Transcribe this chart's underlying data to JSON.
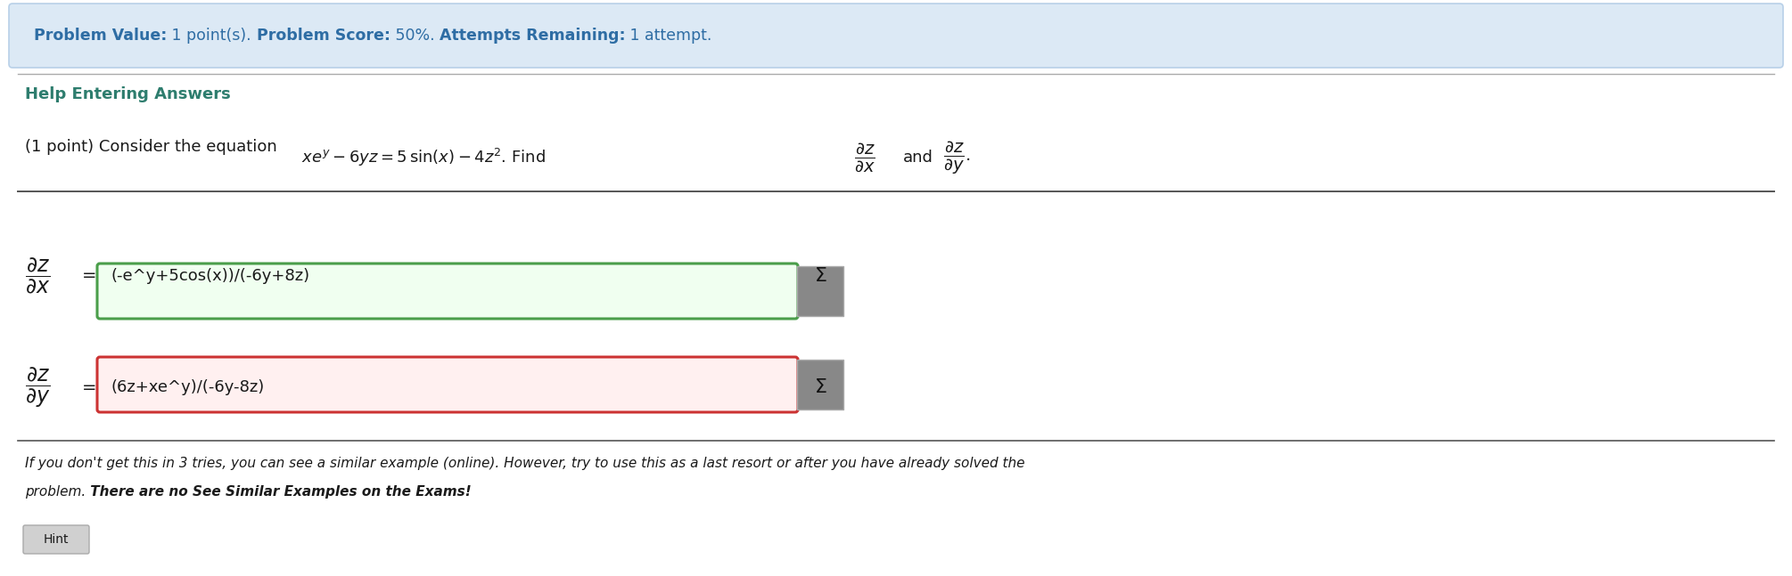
{
  "bg_color": "#ffffff",
  "header_bg": "#dce9f5",
  "header_border_color": "#b8d0e8",
  "header_font_color": "#2e6da4",
  "header_bold": [
    "Problem Value:",
    "Problem Score:",
    "Attempts Remaining:"
  ],
  "header_normal": [
    " 1 point(s). ",
    " 50%. ",
    " 1 attempt."
  ],
  "title_color": "#2e7d6e",
  "body_color": "#1a1a1a",
  "section_title": "Help Entering Answers",
  "problem_prefix": "(1 point) Consider the equation ",
  "problem_equation": "$xe^{y} - 6yz = 5\\sin(x) - 4z^2$. Find",
  "find_dzdx": "$\\dfrac{\\partial z}{\\partial x}$",
  "and_text": "and",
  "find_dzdy": "$\\dfrac{\\partial z}{\\partial y}$",
  "period": ".",
  "answer1_label": "$\\dfrac{\\partial z}{\\partial x}$",
  "answer1_eq": "=",
  "answer1_value": "(-e^y+5cos(x))/(-6y+8z)",
  "answer1_border": "#4a9e4a",
  "answer1_fill": "#f0fff0",
  "answer2_label": "$\\dfrac{\\partial z}{\\partial y}$",
  "answer2_eq": "=",
  "answer2_value": "(6z+xe^y)/(-6y-8z)",
  "answer2_border": "#cc3333",
  "answer2_fill": "#fff0f0",
  "sigma_color": "#888888",
  "sigma_border": "#aaaaaa",
  "line_color": "#aaaaaa",
  "footer_line1": "If you don't get this in 3 tries, you can see a similar example (online). However, try to use this as a last resort or after you have already solved the",
  "footer_line2_italic": "problem.",
  "footer_line2_bold": " There are no See Similar Examples on the Exams!",
  "hint_text": "Hint",
  "hint_bg": "#d0d0d0",
  "hint_border": "#aaaaaa"
}
